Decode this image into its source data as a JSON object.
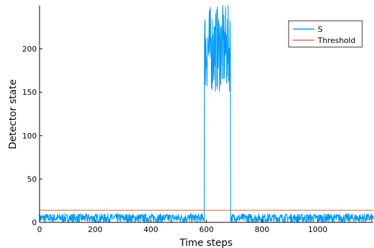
{
  "chart_data": {
    "type": "line",
    "title": "",
    "xlabel": "Time steps",
    "ylabel": "Detector state",
    "xlim": [
      0,
      1200
    ],
    "ylim": [
      0,
      250
    ],
    "xticks": [
      0,
      200,
      400,
      600,
      800,
      1000
    ],
    "yticks": [
      0,
      50,
      100,
      150,
      200
    ],
    "grid": false,
    "legend_position": "top-right",
    "series": [
      {
        "name": "S",
        "color": "#009AF9",
        "noise_seed": 7,
        "segments": [
          {
            "x_start": 0,
            "x_end": 592,
            "low": 0,
            "high": 10
          },
          {
            "x_start": 593,
            "x_end": 686,
            "low": 150,
            "high": 250
          },
          {
            "x_start": 687,
            "x_end": 1200,
            "low": 0,
            "high": 10
          }
        ]
      },
      {
        "name": "Threshold",
        "color": "#E26F46",
        "x": [
          0,
          1200
        ],
        "y": [
          14,
          14
        ]
      }
    ]
  }
}
